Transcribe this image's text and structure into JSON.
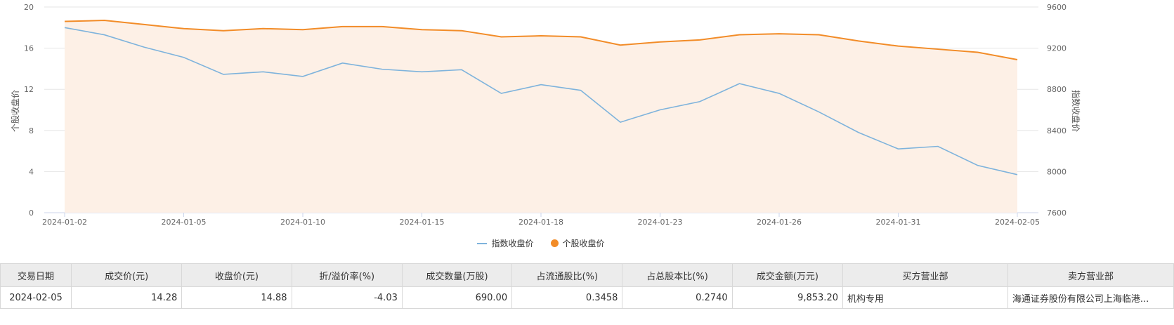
{
  "chart_data": {
    "type": "line",
    "x": [
      "2024-01-02",
      "2024-01-03",
      "2024-01-04",
      "2024-01-05",
      "2024-01-08",
      "2024-01-09",
      "2024-01-10",
      "2024-01-11",
      "2024-01-12",
      "2024-01-15",
      "2024-01-16",
      "2024-01-17",
      "2024-01-18",
      "2024-01-19",
      "2024-01-22",
      "2024-01-23",
      "2024-01-24",
      "2024-01-25",
      "2024-01-26",
      "2024-01-29",
      "2024-01-30",
      "2024-01-31",
      "2024-02-01",
      "2024-02-02",
      "2024-02-05"
    ],
    "x_tick_labels": [
      "2024-01-02",
      "2024-01-05",
      "2024-01-10",
      "2024-01-15",
      "2024-01-18",
      "2024-01-23",
      "2024-01-26",
      "2024-01-31",
      "2024-02-05"
    ],
    "y_left_ticks": [
      "0",
      "4",
      "8",
      "12",
      "16",
      "20"
    ],
    "y_right_ticks": [
      "7600",
      "8000",
      "8400",
      "8800",
      "9200",
      "9600"
    ],
    "ylim_left": [
      0,
      20
    ],
    "ylim_right": [
      7600,
      9600
    ],
    "ylabel_left": "个股收盘价",
    "ylabel_right": "指数收盘价",
    "series": [
      {
        "name": "指数收盘价",
        "axis": "right",
        "color": "#7eb3dc",
        "values": [
          9400,
          9330,
          9210,
          9110,
          8945,
          8970,
          8925,
          9055,
          8995,
          8970,
          8990,
          8760,
          8845,
          8790,
          8480,
          8600,
          8680,
          8855,
          8760,
          8580,
          8380,
          8220,
          8245,
          8060,
          7970
        ]
      },
      {
        "name": "个股收盘价",
        "axis": "left",
        "color": "#f28c28",
        "fill": "#fdf0e6",
        "values": [
          18.6,
          18.7,
          18.3,
          17.9,
          17.7,
          17.9,
          17.8,
          18.1,
          18.1,
          17.8,
          17.7,
          17.1,
          17.2,
          17.1,
          16.3,
          16.6,
          16.8,
          17.3,
          17.4,
          17.3,
          16.7,
          16.2,
          15.9,
          15.6,
          14.88
        ]
      }
    ],
    "grid": true,
    "legend_position": "bottom-center"
  },
  "table": {
    "headers": [
      "交易日期",
      "成交价(元)",
      "收盘价(元)",
      "折/溢价率(%)",
      "成交数量(万股)",
      "占流通股比(%)",
      "占总股本比(%)",
      "成交金额(万元)",
      "买方营业部",
      "卖方营业部"
    ],
    "rows": [
      [
        "2024-02-05",
        "14.28",
        "14.88",
        "-4.03",
        "690.00",
        "0.3458",
        "0.2740",
        "9,853.20",
        "机构专用",
        "海通证券股份有限公司上海临港..."
      ]
    ]
  }
}
